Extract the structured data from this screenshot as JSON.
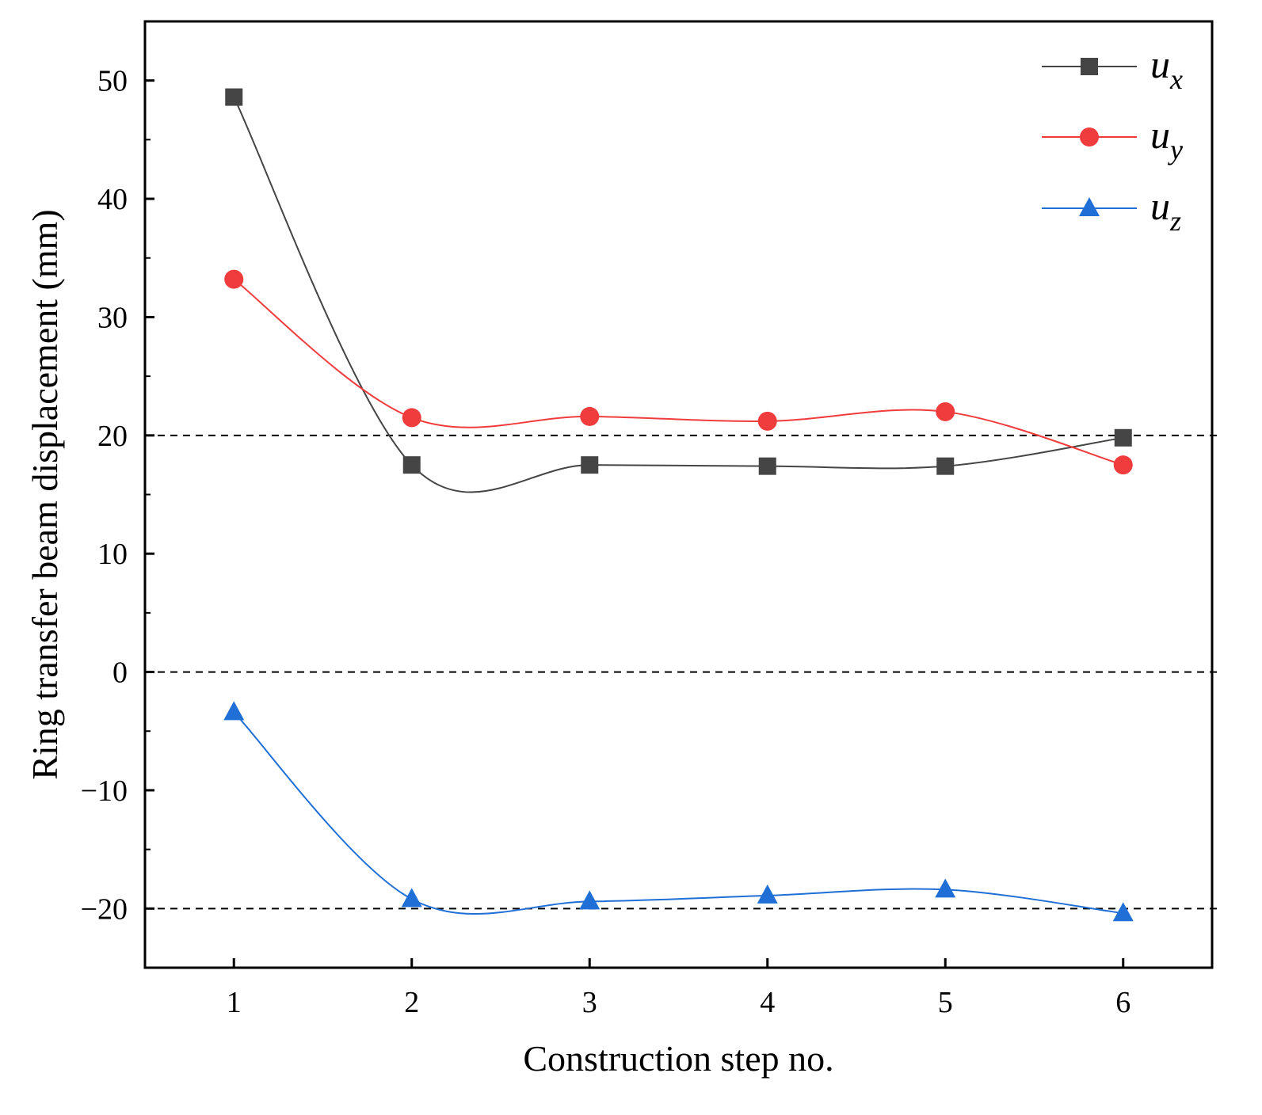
{
  "chart_data": {
    "type": "line",
    "xlabel": "Construction step no.",
    "ylabel": "Ring transfer beam displacement (mm)",
    "x": [
      1,
      2,
      3,
      4,
      5,
      6
    ],
    "xlim": [
      0.5,
      6.5
    ],
    "ylim": [
      -25,
      55
    ],
    "xticks": [
      1,
      2,
      3,
      4,
      5,
      6
    ],
    "yticks": [
      -20,
      -10,
      0,
      10,
      20,
      30,
      40,
      50
    ],
    "ytick_labels": [
      "−20",
      "−10",
      "0",
      "10",
      "20",
      "30",
      "40",
      "50"
    ],
    "reference_lines": [
      20,
      0,
      -20
    ],
    "legend_position": "top-right",
    "series": [
      {
        "name": "u",
        "subscript": "x",
        "marker": "square",
        "color": "#454545",
        "values": [
          48.6,
          17.5,
          17.5,
          17.4,
          17.4,
          19.8
        ]
      },
      {
        "name": "u",
        "subscript": "y",
        "marker": "circle",
        "color": "#f03c3c",
        "values": [
          33.2,
          21.5,
          21.6,
          21.2,
          22.0,
          17.5
        ]
      },
      {
        "name": "u",
        "subscript": "z",
        "marker": "triangle",
        "color": "#1f6fd6",
        "values": [
          -3.4,
          -19.2,
          -19.4,
          -18.9,
          -18.4,
          -20.4
        ]
      }
    ]
  }
}
